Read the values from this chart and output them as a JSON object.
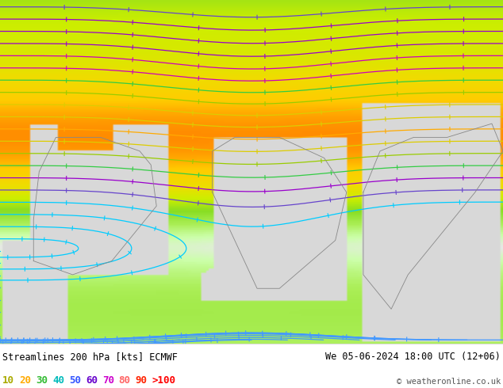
{
  "title_left": "Streamlines 200 hPa [kts] ECMWF",
  "title_right": "We 05-06-2024 18:00 UTC (12+06)",
  "copyright": "© weatheronline.co.uk",
  "legend_values": [
    "10",
    "20",
    "30",
    "40",
    "50",
    "60",
    "70",
    "80",
    "90",
    ">100"
  ],
  "legend_colors": [
    "#aaaa00",
    "#ddaa00",
    "#00bb00",
    "#00bbbb",
    "#0044ff",
    "#8800cc",
    "#cc00cc",
    "#ff6666",
    "#ff2222",
    "#ff0000"
  ],
  "bg_color": "#b8e890",
  "bottom_bar_bg": "#ffffff",
  "text_color": "#000000",
  "figsize": [
    6.34,
    4.9
  ],
  "dpi": 100,
  "speed_colors": [
    [
      0,
      "#ccffcc"
    ],
    [
      10,
      "#99ff66"
    ],
    [
      20,
      "#66dd00"
    ],
    [
      30,
      "#33bb00"
    ],
    [
      40,
      "#ffff00"
    ],
    [
      50,
      "#ffcc00"
    ],
    [
      60,
      "#ff8800"
    ],
    [
      70,
      "#ff4400"
    ],
    [
      80,
      "#ff0000"
    ],
    [
      100,
      "#cc0000"
    ]
  ]
}
